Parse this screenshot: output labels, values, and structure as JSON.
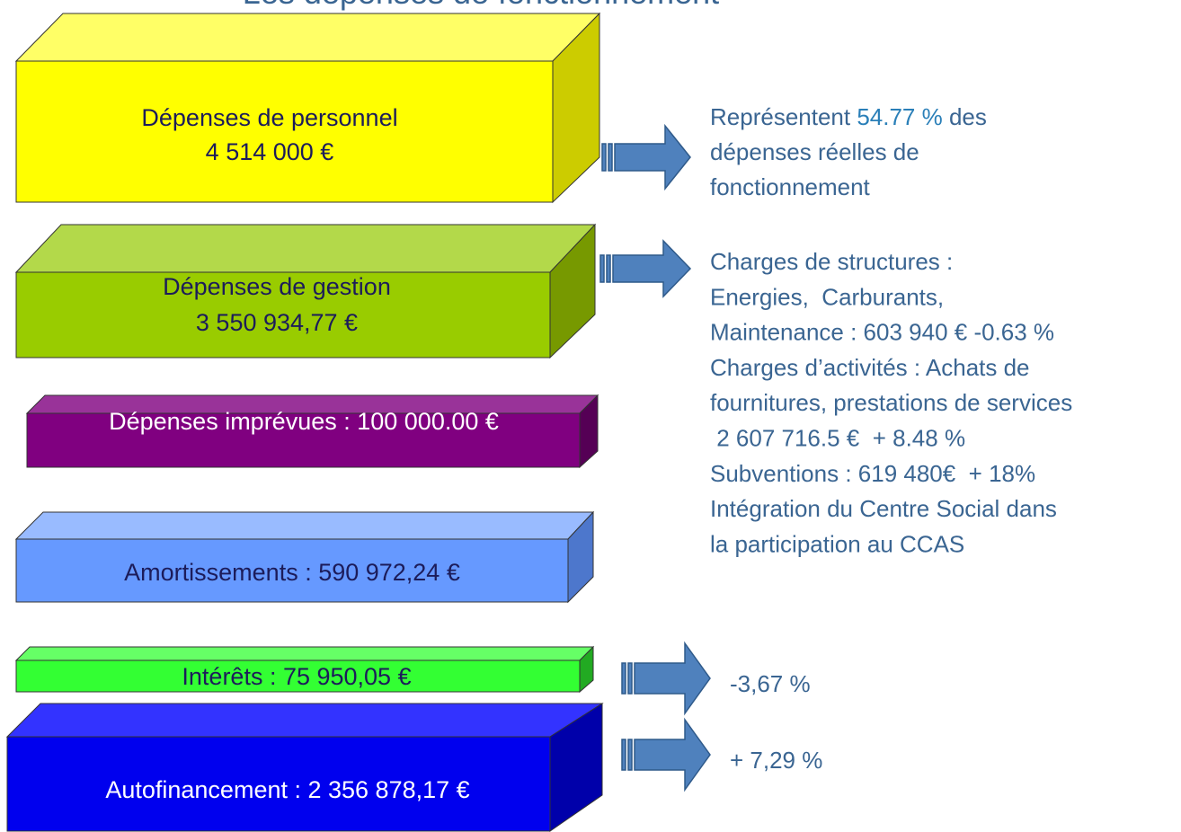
{
  "title": "Les dépenses de fonctionnement",
  "boxes": [
    {
      "lines": [
        "Dépenses de personnel",
        "4 514 000 €"
      ]
    },
    {
      "lines": [
        "Dépenses de gestion",
        "3 550 934,77 €"
      ]
    },
    {
      "lines": [
        "Dépenses imprévues : 100 000.00 €"
      ]
    },
    {
      "lines": [
        "Amortissements : 590 972,24 €"
      ]
    },
    {
      "lines": [
        "Intérêts : 75 950,05 €"
      ]
    },
    {
      "lines": [
        "Autofinancement : 2 356 878,17 €"
      ]
    }
  ],
  "notes": [
    {
      "first": {
        "before": "Représentent ",
        "highlight": "54.77 %",
        "after": " des"
      },
      "lines": [
        "dépenses réelles de",
        "fonctionnement"
      ]
    },
    {
      "lines": [
        "Charges de structures :",
        "Energies,  Carburants,",
        "Maintenance : 603 940 € -0.63 %",
        "Charges d’activités : Achats de",
        "fournitures, prestations de services",
        " 2 607 716.5 €  + 8.48 %",
        "Subventions : 619 480€  + 18%",
        "Intégration du Centre Social dans",
        "la participation au CCAS"
      ]
    },
    {
      "lines": [
        "-3,67 %"
      ]
    },
    {
      "lines": [
        "+ 7,29 %"
      ]
    }
  ]
}
